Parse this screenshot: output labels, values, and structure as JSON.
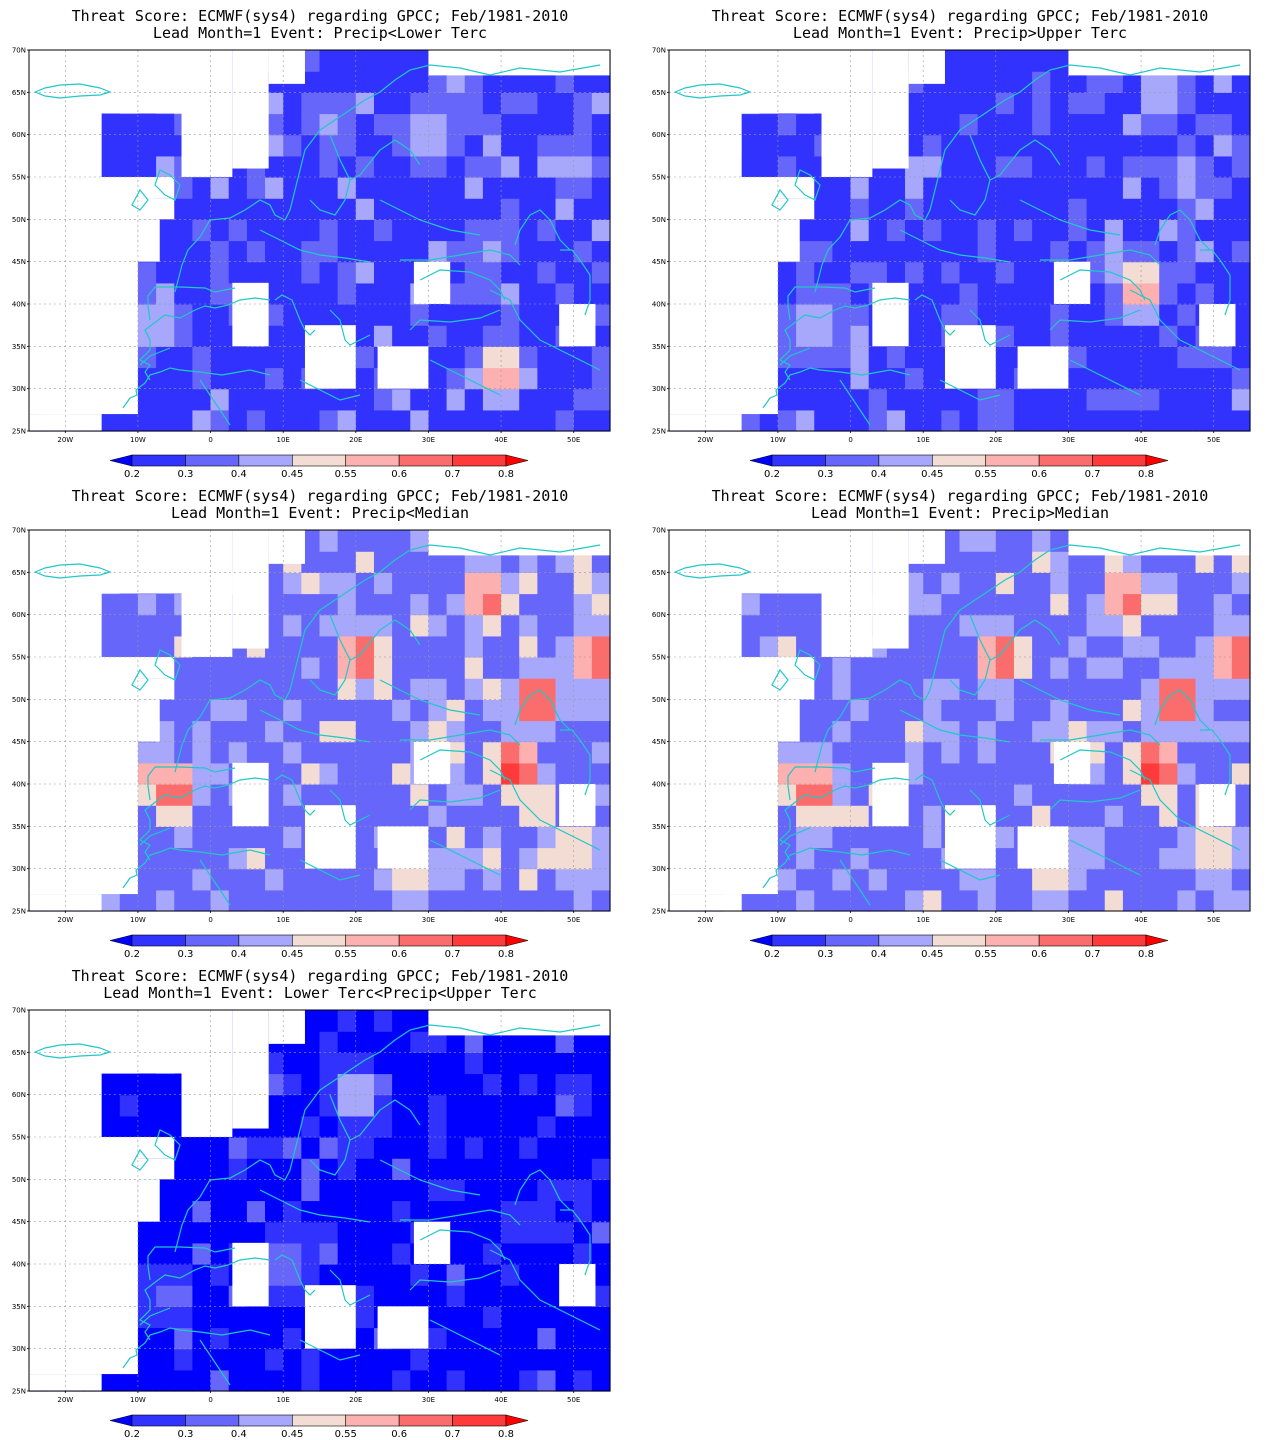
{
  "palette": {
    "levels": [
      "0.2",
      "0.3",
      "0.4",
      "0.45",
      "0.55",
      "0.6",
      "0.7",
      "0.8"
    ],
    "colors": [
      "#0000ff",
      "#3232ff",
      "#6666fa",
      "#a7a7fb",
      "#f2dcd3",
      "#fcb0b0",
      "#fb6c6c",
      "#ff3a3a",
      "#ff0000"
    ],
    "coastline_color": "#20c8c8",
    "no_data_color": "#ffffff"
  },
  "axes": {
    "lat_labels": [
      "70N",
      "65N",
      "60N",
      "55N",
      "50N",
      "45N",
      "40N",
      "35N",
      "30N",
      "25N"
    ],
    "lon_labels": [
      "20W",
      "10W",
      "0",
      "10E",
      "20E",
      "30E",
      "40E",
      "50E"
    ],
    "lat_range": [
      25,
      70
    ],
    "lon_range": [
      -25,
      55
    ]
  },
  "panels": [
    {
      "title": "Threat Score: ECMWF(sys4) regarding GPCC; Feb/1981-2010",
      "subtitle": "Lead Month=1 Event: Precip<Lower Terc",
      "base": 1,
      "hotspots": [
        [
          40,
          32,
          5
        ],
        [
          40,
          32,
          3
        ],
        [
          -7,
          38,
          3
        ],
        [
          30,
          60,
          3
        ],
        [
          50,
          56,
          3
        ],
        [
          38,
          47,
          2
        ],
        [
          17,
          62,
          2
        ],
        [
          33,
          66,
          2
        ]
      ]
    },
    {
      "title": "Threat Score: ECMWF(sys4) regarding GPCC; Feb/1981-2010",
      "subtitle": "Lead Month=1 Event: Precip>Upper Terc",
      "base": 1,
      "hotspots": [
        [
          40,
          42,
          6
        ],
        [
          40,
          42,
          4
        ],
        [
          -5,
          38,
          3
        ],
        [
          46,
          55,
          3
        ],
        [
          36,
          45,
          3
        ],
        [
          43,
          65,
          3
        ],
        [
          20,
          27,
          2
        ],
        [
          -2,
          35,
          2
        ]
      ]
    },
    {
      "title": "Threat Score: ECMWF(sys4) regarding GPCC; Feb/1981-2010",
      "subtitle": "Lead Month=1 Event: Precip<Median",
      "base": 2,
      "hotspots": [
        [
          -5,
          39,
          6
        ],
        [
          21,
          55,
          6
        ],
        [
          45,
          50,
          6
        ],
        [
          42,
          42,
          6
        ],
        [
          53,
          55,
          6
        ],
        [
          38,
          62,
          5
        ],
        [
          -8,
          41,
          3
        ],
        [
          32,
          44,
          3
        ],
        [
          28,
          30,
          3
        ],
        [
          50,
          32,
          3
        ]
      ]
    },
    {
      "title": "Threat Score: ECMWF(sys4) regarding GPCC; Feb/1981-2010",
      "subtitle": "Lead Month=1 Event: Precip>Median",
      "base": 2,
      "hotspots": [
        [
          -5,
          39,
          6
        ],
        [
          21,
          55,
          6
        ],
        [
          45,
          50,
          6
        ],
        [
          42,
          42,
          6
        ],
        [
          53,
          55,
          6
        ],
        [
          38,
          62,
          5
        ],
        [
          -8,
          41,
          3
        ],
        [
          32,
          44,
          3
        ],
        [
          28,
          30,
          3
        ],
        [
          50,
          32,
          3
        ]
      ]
    },
    {
      "title": "Threat Score: ECMWF(sys4) regarding GPCC; Feb/1981-2010",
      "subtitle": "Lead Month=1 Event: Lower Terc<Precip<Upper Terc",
      "base": 0,
      "hotspots": [
        [
          20,
          60,
          4
        ],
        [
          10,
          40,
          3
        ],
        [
          -7,
          37,
          2
        ],
        [
          50,
          60,
          2
        ],
        [
          44,
          45,
          2
        ]
      ]
    }
  ]
}
